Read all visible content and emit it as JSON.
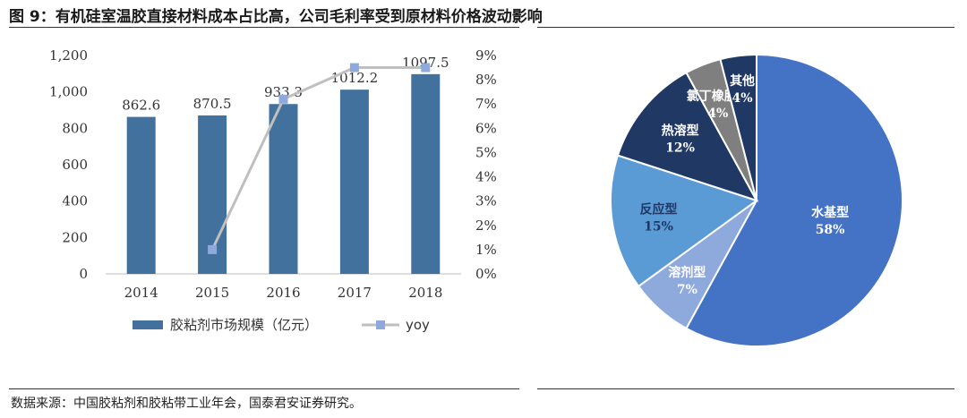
{
  "figure": {
    "title": "图 9：有机硅室温胶直接材料成本占比高，公司毛利率受到原材料价格波动影响",
    "source": "数据来源：中国胶粘剂和胶粘带工业年会，国泰君安证券研究。"
  },
  "colors": {
    "bar": "#41719c",
    "yoy_line": "#bfbfbf",
    "yoy_marker": "#8ea9db",
    "pie": [
      "#4472c4",
      "#8ea9db",
      "#5b9bd5",
      "#1f3864",
      "#7f7f7f",
      "#203864"
    ]
  },
  "chart_data": [
    {
      "type": "bar",
      "categories": [
        "2014",
        "2015",
        "2016",
        "2017",
        "2018"
      ],
      "series": [
        {
          "name": "胶粘剂市场规模（亿元）",
          "type": "bar",
          "axis": "left",
          "values": [
            862.6,
            870.5,
            933.3,
            1012.2,
            1097.5
          ]
        },
        {
          "name": "yoy",
          "type": "line",
          "axis": "right",
          "values": [
            null,
            1.0,
            7.2,
            8.5,
            8.5
          ]
        }
      ],
      "data_labels": [
        "862.6",
        "870.5",
        "933.3",
        "1012.2",
        "1097.5"
      ],
      "y_left": {
        "ticks": [
          "0",
          "200",
          "400",
          "600",
          "800",
          "1,000",
          "1,200"
        ],
        "ylim": [
          0,
          1200
        ]
      },
      "y_right": {
        "ticks": [
          "0%",
          "1%",
          "2%",
          "3%",
          "4%",
          "5%",
          "6%",
          "7%",
          "8%",
          "9%"
        ],
        "ylim": [
          0,
          9
        ]
      },
      "legend": {
        "position": "bottom",
        "entries": [
          "胶粘剂市场规模（亿元）",
          "yoy"
        ]
      },
      "grid": false
    },
    {
      "type": "pie",
      "slices": [
        {
          "label": "水基型",
          "value": 58,
          "pct": "58%"
        },
        {
          "label": "溶剂型",
          "value": 7,
          "pct": "7%"
        },
        {
          "label": "反应型",
          "value": 15,
          "pct": "15%"
        },
        {
          "label": "热溶型",
          "value": 12,
          "pct": "12%"
        },
        {
          "label": "氯丁橡胶类",
          "value": 4,
          "pct": "4%"
        },
        {
          "label": "其他",
          "value": 4,
          "pct": "4%"
        }
      ]
    }
  ]
}
